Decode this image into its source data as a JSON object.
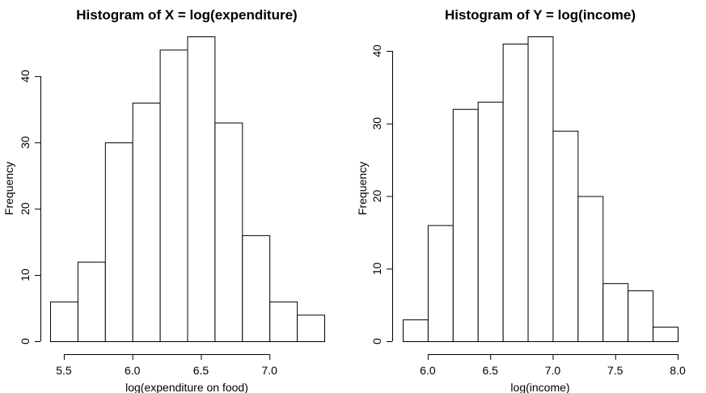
{
  "chart_data": [
    {
      "type": "bar",
      "title": "Histogram of X = log(expenditure)",
      "xlabel": "log(expenditure on food)",
      "ylabel": "Frequency",
      "bin_edges": [
        5.4,
        5.6,
        5.8,
        6.0,
        6.2,
        6.4,
        6.6,
        6.8,
        7.0,
        7.2,
        7.4
      ],
      "values": [
        6,
        12,
        30,
        36,
        44,
        46,
        33,
        16,
        6,
        4
      ],
      "xlim": [
        5.4,
        7.4
      ],
      "ylim": [
        0,
        46
      ],
      "x_ticks": [
        5.5,
        6.0,
        6.5,
        7.0
      ],
      "x_tick_labels": [
        "5.5",
        "6.0",
        "6.5",
        "7.0"
      ],
      "y_ticks": [
        0,
        10,
        20,
        30,
        40
      ],
      "y_tick_labels": [
        "0",
        "10",
        "20",
        "30",
        "40"
      ],
      "grid": false
    },
    {
      "type": "bar",
      "title": "Histogram of Y = log(income)",
      "xlabel": "log(income)",
      "ylabel": "Frequency",
      "bin_edges": [
        5.8,
        6.0,
        6.2,
        6.4,
        6.6,
        6.8,
        7.0,
        7.2,
        7.4,
        7.6,
        7.8,
        8.0
      ],
      "values": [
        3,
        16,
        32,
        33,
        41,
        42,
        29,
        20,
        8,
        7,
        2
      ],
      "xlim": [
        5.8,
        8.0
      ],
      "ylim": [
        0,
        42
      ],
      "x_ticks": [
        6.0,
        6.5,
        7.0,
        7.5,
        8.0
      ],
      "x_tick_labels": [
        "6.0",
        "6.5",
        "7.0",
        "7.5",
        "8.0"
      ],
      "y_ticks": [
        0,
        10,
        20,
        30,
        40
      ],
      "y_tick_labels": [
        "0",
        "10",
        "20",
        "30",
        "40"
      ],
      "grid": false
    }
  ]
}
